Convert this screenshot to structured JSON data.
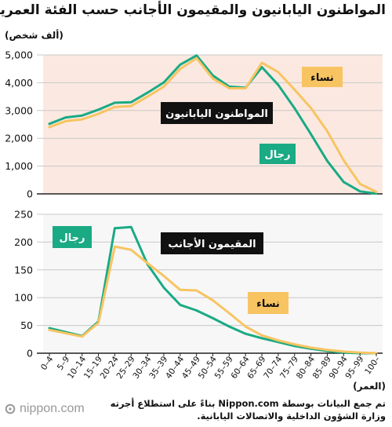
{
  "title": "المواطنون اليابانيون والمقيمون الأجانب حسب الفئة العمرية",
  "unit_label": "(ألف شخص)",
  "xlabel": "(العمر)",
  "source_lines": [
    "تم جمع البيانات بوسطة Nippon.com بناءً على استطلاع أجرته",
    "وزارة الشؤون الداخلية والاتصالات اليابانية."
  ],
  "logo_text": "nippon.com",
  "colors": {
    "men": "#1aaa84",
    "women": "#f8c462",
    "panel_top": "#fbe9e1",
    "panel_bottom": "#f7f7f7",
    "label_dark": "#111111"
  },
  "chart_data": [
    {
      "type": "line",
      "title": "المواطنون اليابانيون",
      "categories": [
        "0–4",
        "5–9",
        "10–14",
        "15–19",
        "20–24",
        "25–29",
        "30–34",
        "35–39",
        "40–44",
        "45–49",
        "50–54",
        "55–59",
        "60–64",
        "65–69",
        "70–74",
        "75–79",
        "80–84",
        "85–89",
        "90–94",
        "95–99",
        "100–"
      ],
      "ylim": [
        0,
        5000
      ],
      "yticks": [
        0,
        1000,
        2000,
        3000,
        4000,
        5000
      ],
      "ytick_labels": [
        "0",
        "1,000",
        "2,000",
        "3,000",
        "4,000",
        "5,000"
      ],
      "grid": true,
      "series": [
        {
          "name": "رجال",
          "color_key": "men",
          "values": [
            2520,
            2750,
            2820,
            3030,
            3280,
            3300,
            3640,
            4010,
            4650,
            4980,
            4260,
            3860,
            3820,
            4560,
            3920,
            3080,
            2150,
            1180,
            430,
            90,
            10
          ]
        },
        {
          "name": "نساء",
          "color_key": "women",
          "values": [
            2400,
            2620,
            2680,
            2880,
            3130,
            3160,
            3500,
            3860,
            4500,
            4880,
            4150,
            3800,
            3800,
            4720,
            4380,
            3750,
            3090,
            2250,
            1210,
            360,
            70
          ]
        }
      ]
    },
    {
      "type": "line",
      "title": "المقيمون الأجانب",
      "categories": [
        "0–4",
        "5–9",
        "10–14",
        "15–19",
        "20–24",
        "25–29",
        "30–34",
        "35–39",
        "40–44",
        "45–49",
        "50–54",
        "55–59",
        "60–64",
        "65–69",
        "70–74",
        "75–79",
        "80–84",
        "85–89",
        "90–94",
        "95–99",
        "100–"
      ],
      "ylim": [
        0,
        250
      ],
      "yticks": [
        0,
        50,
        100,
        150,
        200,
        250
      ],
      "ytick_labels": [
        "0",
        "50",
        "100",
        "150",
        "200",
        "250"
      ],
      "grid": true,
      "series": [
        {
          "name": "رجال",
          "color_key": "men",
          "values": [
            45,
            38,
            31,
            57,
            225,
            227,
            160,
            118,
            87,
            77,
            63,
            48,
            35,
            27,
            20,
            13,
            8,
            4,
            1,
            0,
            0
          ]
        },
        {
          "name": "نساء",
          "color_key": "women",
          "values": [
            42,
            36,
            30,
            55,
            192,
            186,
            162,
            139,
            114,
            113,
            95,
            72,
            48,
            32,
            23,
            16,
            10,
            6,
            3,
            1,
            0
          ]
        }
      ]
    }
  ]
}
